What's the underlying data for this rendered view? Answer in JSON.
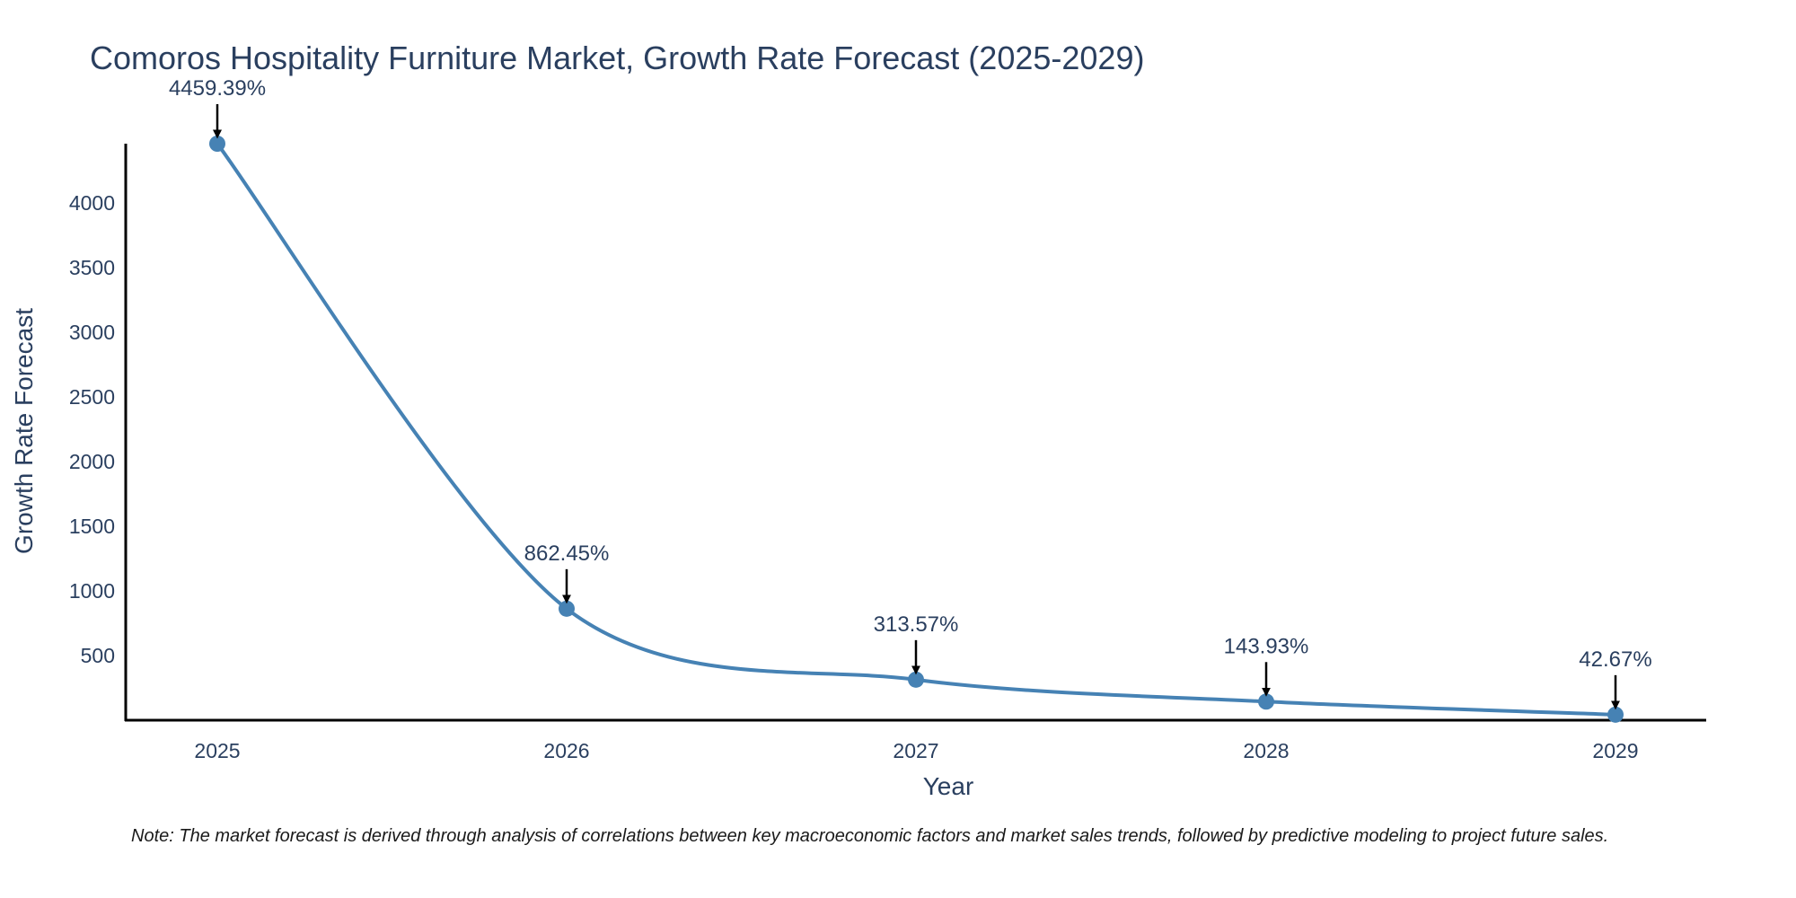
{
  "chart_data": {
    "type": "line",
    "title": "Comoros Hospitality Furniture Market, Growth Rate Forecast (2025-2029)",
    "xlabel": "Year",
    "ylabel": "Growth Rate Forecast",
    "categories": [
      "2025",
      "2026",
      "2027",
      "2028",
      "2029"
    ],
    "series": [
      {
        "name": "Growth Rate Forecast",
        "values": [
          4459.39,
          862.45,
          313.57,
          143.93,
          42.67
        ],
        "labels": [
          "4459.39%",
          "862.45%",
          "313.57%",
          "143.93%",
          "42.67%"
        ]
      }
    ],
    "yticks": [
      500,
      1000,
      1500,
      2000,
      2500,
      3000,
      3500,
      4000
    ],
    "ylim": [
      0,
      4459.39
    ],
    "grid": false,
    "line_color": "#4682b4",
    "text_color": "#2a3f5f",
    "note": "Note: The market forecast is derived through analysis of correlations between key macroeconomic factors and market sales trends, followed by predictive modeling to project future sales."
  }
}
